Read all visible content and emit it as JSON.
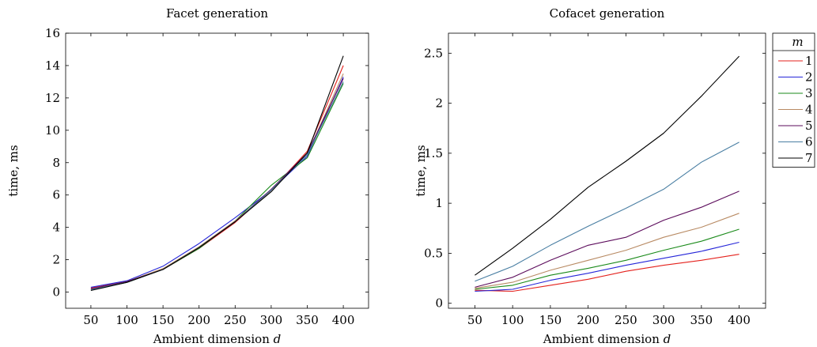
{
  "chart_data": [
    {
      "type": "line",
      "title": "Facet generation",
      "xlabel": "Ambient dimension d",
      "ylabel": "time, ms",
      "xlim": [
        15,
        435
      ],
      "ylim": [
        -1,
        16
      ],
      "xticks": [
        50,
        100,
        150,
        200,
        250,
        300,
        350,
        400
      ],
      "yticks": [
        0,
        2,
        4,
        6,
        8,
        10,
        12,
        14,
        16
      ],
      "x": [
        50,
        100,
        150,
        200,
        250,
        300,
        350,
        400
      ],
      "series": [
        {
          "name": "1",
          "color": "#e4211c",
          "values": [
            0.25,
            0.65,
            1.4,
            2.7,
            4.3,
            6.3,
            8.7,
            14.0
          ]
        },
        {
          "name": "2",
          "color": "#2525d8",
          "values": [
            0.3,
            0.7,
            1.6,
            3.0,
            4.6,
            6.3,
            8.4,
            13.3
          ]
        },
        {
          "name": "3",
          "color": "#1a8a1a",
          "values": [
            0.15,
            0.6,
            1.4,
            2.7,
            4.4,
            6.6,
            8.3,
            12.9
          ]
        },
        {
          "name": "4",
          "color": "#b88a63",
          "values": [
            0.2,
            0.65,
            1.45,
            2.8,
            4.4,
            6.3,
            8.5,
            13.5
          ]
        },
        {
          "name": "5",
          "color": "#5b0b5b",
          "values": [
            0.2,
            0.65,
            1.4,
            2.75,
            4.35,
            6.35,
            8.6,
            13.2
          ]
        },
        {
          "name": "6",
          "color": "#4a7fa3",
          "values": [
            0.15,
            0.6,
            1.4,
            2.75,
            4.35,
            6.3,
            8.5,
            13.0
          ]
        },
        {
          "name": "7",
          "color": "#000000",
          "values": [
            0.1,
            0.6,
            1.4,
            2.75,
            4.35,
            6.2,
            8.6,
            14.6
          ]
        }
      ]
    },
    {
      "type": "line",
      "title": "Cofacet generation",
      "xlabel": "Ambient dimension d",
      "ylabel": "time, ms",
      "xlim": [
        15,
        435
      ],
      "ylim": [
        -0.05,
        2.7
      ],
      "xticks": [
        50,
        100,
        150,
        200,
        250,
        300,
        350,
        400
      ],
      "yticks": [
        0,
        0.5,
        1,
        1.5,
        2,
        2.5
      ],
      "x": [
        50,
        100,
        150,
        200,
        250,
        300,
        350,
        400
      ],
      "legend": {
        "title": "m",
        "position": "outside-right"
      },
      "series": [
        {
          "name": "1",
          "color": "#e4211c",
          "values": [
            0.13,
            0.12,
            0.18,
            0.24,
            0.32,
            0.38,
            0.43,
            0.49
          ]
        },
        {
          "name": "2",
          "color": "#2525d8",
          "values": [
            0.12,
            0.14,
            0.23,
            0.3,
            0.38,
            0.45,
            0.52,
            0.61
          ]
        },
        {
          "name": "3",
          "color": "#1a8a1a",
          "values": [
            0.14,
            0.18,
            0.28,
            0.35,
            0.43,
            0.53,
            0.62,
            0.74
          ]
        },
        {
          "name": "4",
          "color": "#b88a63",
          "values": [
            0.15,
            0.21,
            0.33,
            0.43,
            0.53,
            0.66,
            0.76,
            0.9
          ]
        },
        {
          "name": "5",
          "color": "#5b0b5b",
          "values": [
            0.16,
            0.26,
            0.43,
            0.58,
            0.66,
            0.83,
            0.96,
            1.12
          ]
        },
        {
          "name": "6",
          "color": "#4a7fa3",
          "values": [
            0.22,
            0.37,
            0.58,
            0.77,
            0.95,
            1.14,
            1.41,
            1.61
          ]
        },
        {
          "name": "7",
          "color": "#000000",
          "values": [
            0.28,
            0.55,
            0.84,
            1.16,
            1.42,
            1.7,
            2.07,
            2.47
          ]
        }
      ]
    }
  ]
}
